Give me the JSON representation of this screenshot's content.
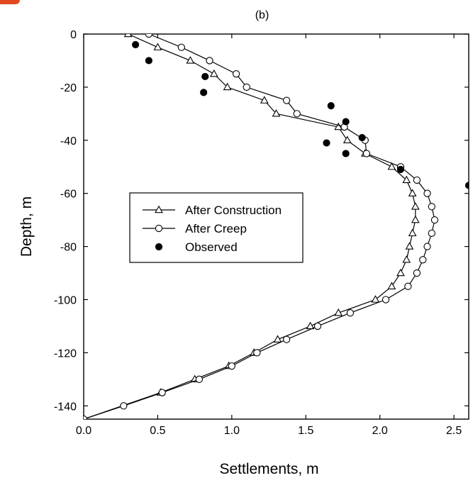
{
  "chart_data": {
    "type": "line",
    "panel_label": "(b)",
    "xlabel": "Settlements, m",
    "ylabel": "Depth, m",
    "xlim": [
      0,
      2.6
    ],
    "ylim": [
      -145,
      0
    ],
    "x_ticks": [
      0.0,
      0.5,
      1.0,
      1.5,
      2.0,
      2.5
    ],
    "x_tick_labels": [
      "0.0",
      "0.5",
      "1.0",
      "1.5",
      "2.0",
      "2.5"
    ],
    "y_ticks": [
      0,
      -20,
      -40,
      -60,
      -80,
      -100,
      -120,
      -140
    ],
    "y_tick_labels": [
      "0",
      "-20",
      "-40",
      "-60",
      "-80",
      "-100",
      "-120",
      "-140"
    ],
    "grid": false,
    "legend_position": "center-left",
    "series": [
      {
        "name": "After Construction",
        "marker": "open-triangle",
        "points": [
          [
            0.3,
            0
          ],
          [
            0.5,
            -5
          ],
          [
            0.72,
            -10
          ],
          [
            0.88,
            -15
          ],
          [
            0.97,
            -20
          ],
          [
            1.22,
            -25
          ],
          [
            1.3,
            -30
          ],
          [
            1.72,
            -35
          ],
          [
            1.78,
            -40
          ],
          [
            1.9,
            -45
          ],
          [
            2.08,
            -50
          ],
          [
            2.18,
            -55
          ],
          [
            2.22,
            -60
          ],
          [
            2.24,
            -65
          ],
          [
            2.24,
            -70
          ],
          [
            2.22,
            -75
          ],
          [
            2.2,
            -80
          ],
          [
            2.18,
            -85
          ],
          [
            2.14,
            -90
          ],
          [
            2.08,
            -95
          ],
          [
            1.97,
            -100
          ],
          [
            1.72,
            -105
          ],
          [
            1.53,
            -110
          ],
          [
            1.31,
            -115
          ],
          [
            1.15,
            -120
          ],
          [
            0.98,
            -125
          ],
          [
            0.75,
            -130
          ],
          [
            0.52,
            -135
          ],
          [
            0.0,
            -145
          ]
        ]
      },
      {
        "name": "After Creep",
        "marker": "open-circle",
        "points": [
          [
            0.44,
            0
          ],
          [
            0.66,
            -5
          ],
          [
            0.85,
            -10
          ],
          [
            1.03,
            -15
          ],
          [
            1.1,
            -20
          ],
          [
            1.37,
            -25
          ],
          [
            1.44,
            -30
          ],
          [
            1.76,
            -35
          ],
          [
            1.9,
            -40
          ],
          [
            1.91,
            -45
          ],
          [
            2.14,
            -50
          ],
          [
            2.25,
            -55
          ],
          [
            2.32,
            -60
          ],
          [
            2.35,
            -65
          ],
          [
            2.37,
            -70
          ],
          [
            2.35,
            -75
          ],
          [
            2.32,
            -80
          ],
          [
            2.29,
            -85
          ],
          [
            2.25,
            -90
          ],
          [
            2.19,
            -95
          ],
          [
            2.04,
            -100
          ],
          [
            1.8,
            -105
          ],
          [
            1.58,
            -110
          ],
          [
            1.37,
            -115
          ],
          [
            1.17,
            -120
          ],
          [
            1.0,
            -125
          ],
          [
            0.78,
            -130
          ],
          [
            0.53,
            -135
          ],
          [
            0.27,
            -140
          ],
          [
            0.0,
            -145
          ]
        ]
      },
      {
        "name": "Observed",
        "marker": "filled-circle",
        "style": "markers-only",
        "points": [
          [
            0.35,
            -4
          ],
          [
            0.44,
            -10
          ],
          [
            0.82,
            -16
          ],
          [
            0.81,
            -22
          ],
          [
            1.67,
            -27
          ],
          [
            1.77,
            -33
          ],
          [
            1.88,
            -39
          ],
          [
            1.64,
            -41
          ],
          [
            1.77,
            -45
          ],
          [
            2.14,
            -51
          ],
          [
            2.6,
            -57
          ]
        ]
      }
    ]
  }
}
